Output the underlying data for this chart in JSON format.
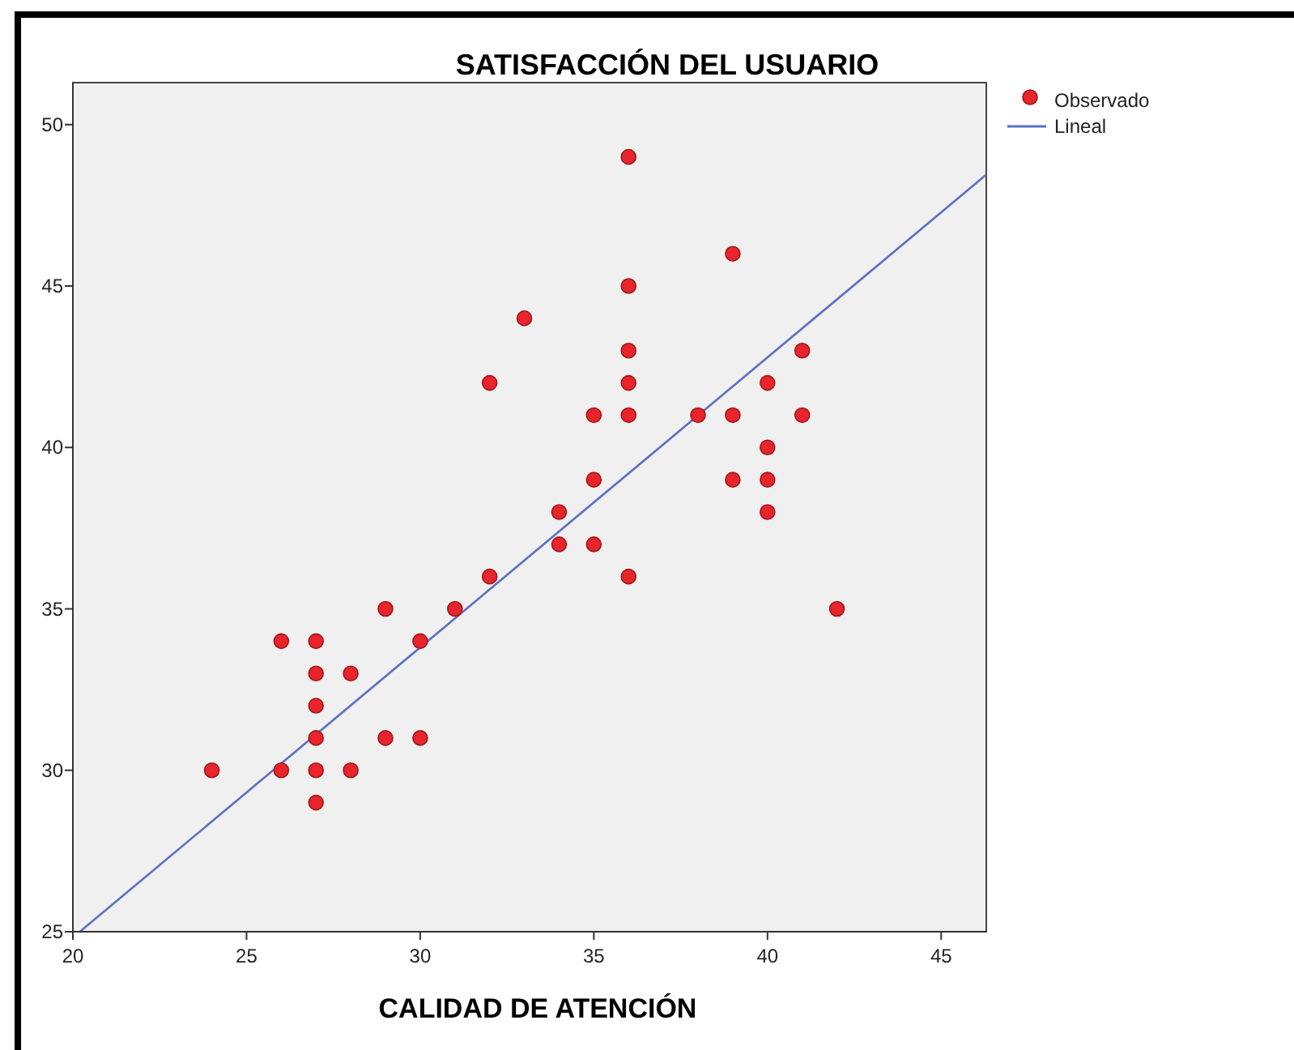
{
  "chart_data": {
    "type": "scatter",
    "title": "SATISFACCIÓN DEL USUARIO",
    "xlabel": "CALIDAD DE ATENCIÓN",
    "xlim": [
      20,
      46.3
    ],
    "ylim": [
      25,
      51.3
    ],
    "xticks": [
      20,
      25,
      30,
      35,
      40,
      45
    ],
    "yticks": [
      25,
      30,
      35,
      40,
      45,
      50
    ],
    "grid": false,
    "legend": "right",
    "series": [
      {
        "name": "Observado",
        "type": "scatter",
        "color": "#e8242c",
        "marker": "circle",
        "x": [
          24,
          26,
          26,
          27,
          27,
          27,
          27,
          27,
          27,
          28,
          28,
          29,
          29,
          30,
          30,
          31,
          32,
          32,
          33,
          34,
          34,
          35,
          35,
          35,
          36,
          36,
          36,
          36,
          36,
          36,
          38,
          39,
          39,
          39,
          40,
          40,
          40,
          40,
          41,
          41,
          42
        ],
        "values": [
          30,
          34,
          30,
          34,
          33,
          32,
          31,
          30,
          29,
          33,
          30,
          35,
          31,
          34,
          31,
          35,
          42,
          36,
          44,
          38,
          37,
          41,
          39,
          37,
          49,
          45,
          43,
          42,
          41,
          36,
          41,
          46,
          41,
          39,
          42,
          40,
          39,
          38,
          43,
          41,
          35
        ]
      },
      {
        "name": "Lineal",
        "type": "line",
        "color": "#5b6fc4",
        "marker": "none",
        "line_style": "solid",
        "x": [
          20.2,
          46.3
        ],
        "values": [
          25,
          48.45
        ]
      }
    ]
  }
}
